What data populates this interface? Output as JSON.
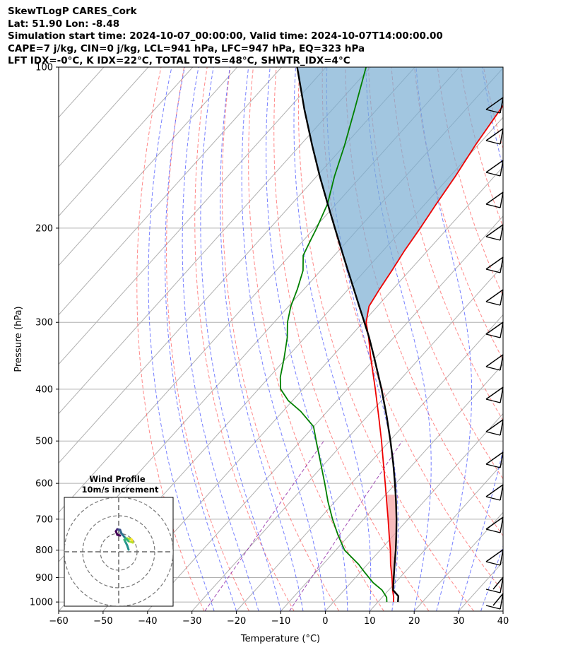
{
  "header": {
    "line1": "SkewTLogP CARES_Cork",
    "line2": "Lat: 51.90   Lon: -8.48",
    "line3": "Simulation start time: 2024-10-07_00:00:00, Valid time: 2024-10-07T14:00:00.00",
    "line4": "CAPE=7 j/kg, CIN=0 j/kg, LCL=941 hPa, LFC=947 hPa, EQ=323 hPa",
    "line5": "LFT IDX=-0°C, K IDX=22°C, TOTAL TOTS=48°C, SHWTR_IDX=4°C"
  },
  "chart_data": {
    "type": "line",
    "subtype": "skew-T log-P diagram",
    "xlabel": "Temperature (°C)",
    "ylabel": "Pressure (hPa)",
    "xlim": [
      -60,
      40
    ],
    "ylim": [
      1040,
      100
    ],
    "y_scale": "log",
    "x_ticks": [
      "−60",
      "−50",
      "−40",
      "−30",
      "−20",
      "−10",
      "0",
      "10",
      "20",
      "30",
      "40"
    ],
    "y_ticks": [
      "100",
      "200",
      "300",
      "400",
      "500",
      "600",
      "700",
      "800",
      "900",
      "1000"
    ],
    "grid": true,
    "colors": {
      "temperature": "#ee0000",
      "dewpoint": "#008000",
      "parcel": "#000000",
      "cape_fill": "#f4a0a0",
      "cin_fill": "#7aaed3",
      "dry_adiabat": "#ff6060",
      "moist_adiabat": "#4a55ff",
      "mixing_ratio": "#8b1fa3"
    },
    "series": [
      {
        "key": "temperature",
        "p": [
          1000,
          980,
          950,
          900,
          850,
          800,
          750,
          700,
          650,
          600,
          550,
          500,
          450,
          400,
          350,
          320,
          300,
          280,
          260,
          240,
          220,
          200,
          180,
          160,
          140,
          120,
          110,
          100
        ],
        "t": [
          13.5,
          12.6,
          10.9,
          8.2,
          5.2,
          2.3,
          -1.0,
          -4.5,
          -8.3,
          -12.4,
          -16.9,
          -21.8,
          -27.4,
          -33.7,
          -41.0,
          -45.7,
          -49.3,
          -51.9,
          -53.0,
          -54.0,
          -55.2,
          -56.2,
          -57.5,
          -58.8,
          -60.6,
          -62.2,
          -63.0,
          -63.5
        ]
      },
      {
        "key": "dewpoint",
        "p": [
          1000,
          980,
          950,
          920,
          880,
          850,
          800,
          750,
          700,
          650,
          600,
          550,
          500,
          470,
          440,
          420,
          400,
          380,
          350,
          320,
          300,
          280,
          260,
          240,
          225,
          210,
          200,
          180,
          160,
          140,
          120,
          100
        ],
        "td": [
          12.0,
          11.0,
          8.5,
          5.0,
          1.0,
          -2.0,
          -8.0,
          -12.5,
          -17.0,
          -21.5,
          -26.0,
          -31.0,
          -36.5,
          -40.0,
          -46.0,
          -51.0,
          -55.0,
          -57.5,
          -60.5,
          -64.0,
          -67.0,
          -69.5,
          -71.5,
          -74.0,
          -77.0,
          -78.5,
          -79.5,
          -82.0,
          -86.0,
          -90.0,
          -95.0,
          -101.0
        ]
      },
      {
        "key": "parcel",
        "p": [
          1000,
          975,
          950,
          900,
          850,
          800,
          750,
          700,
          650,
          600,
          550,
          500,
          450,
          400,
          350,
          320,
          300,
          280,
          260,
          240,
          220,
          200,
          180,
          160,
          140,
          120,
          100
        ],
        "t": [
          14.5,
          13.4,
          11.0,
          8.6,
          6.1,
          3.5,
          0.6,
          -2.6,
          -6.2,
          -10.2,
          -14.7,
          -19.8,
          -25.6,
          -32.3,
          -40.2,
          -45.6,
          -49.7,
          -54.1,
          -58.8,
          -63.9,
          -69.4,
          -75.4,
          -82.0,
          -89.3,
          -97.3,
          -106.3,
          -116.5
        ]
      }
    ],
    "inset": {
      "title": "Wind Profile",
      "subtitle": "10m/s increment"
    }
  }
}
